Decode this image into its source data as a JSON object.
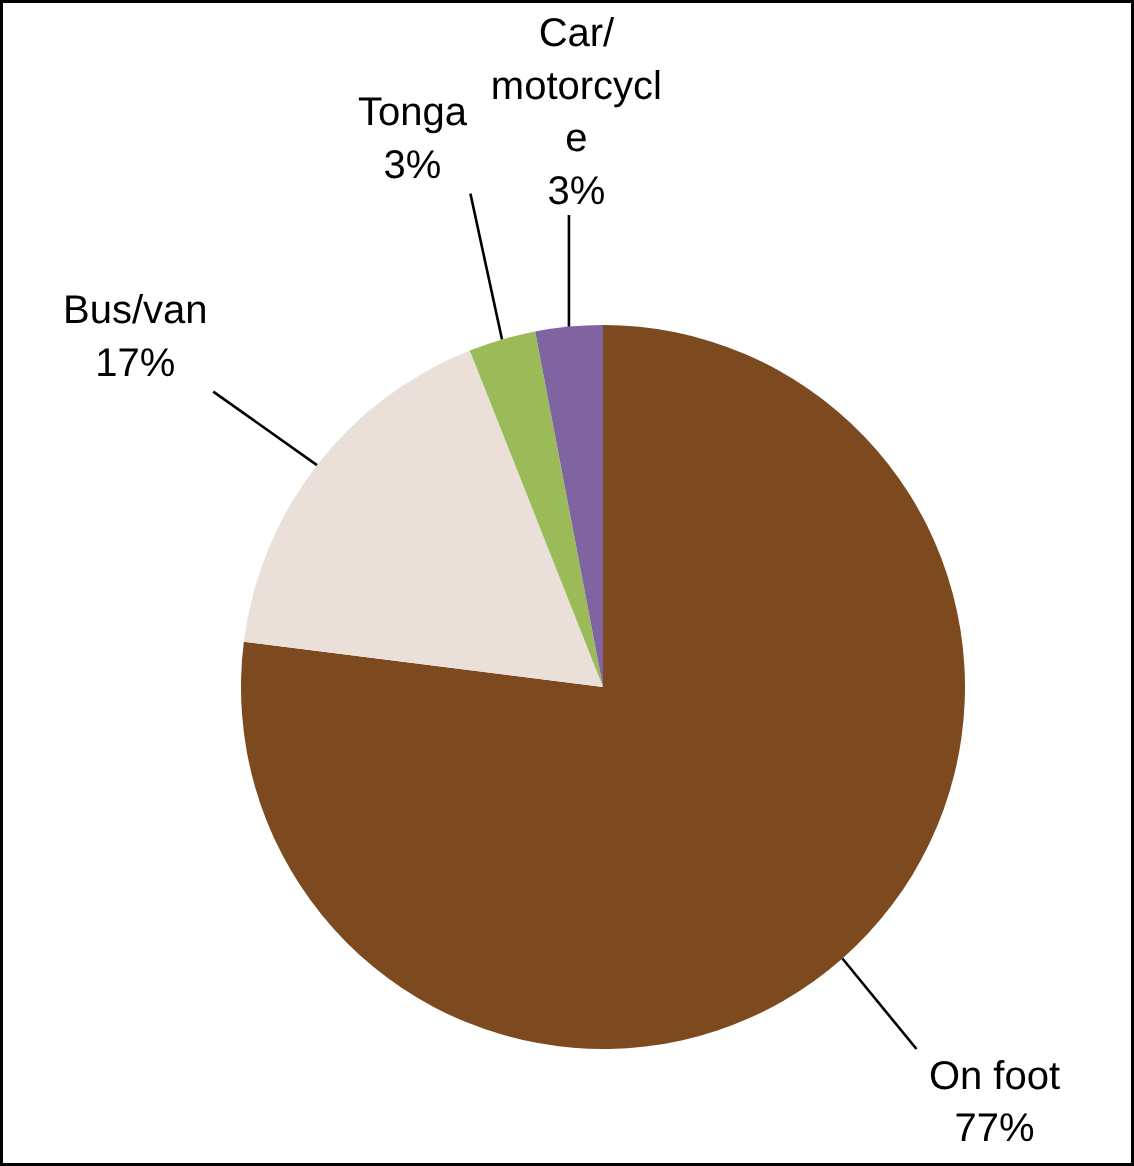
{
  "chart_data": {
    "type": "pie",
    "categories": [
      "On foot",
      "Bus/van",
      "Tonga",
      "Car/motorcycle"
    ],
    "values": [
      77,
      17,
      3,
      3
    ],
    "colors": [
      "#7d4a1f",
      "#eae0d9",
      "#9bbb59",
      "#8064a2"
    ],
    "value_labels": [
      "77%",
      "17%",
      "3%",
      "3%"
    ]
  }
}
